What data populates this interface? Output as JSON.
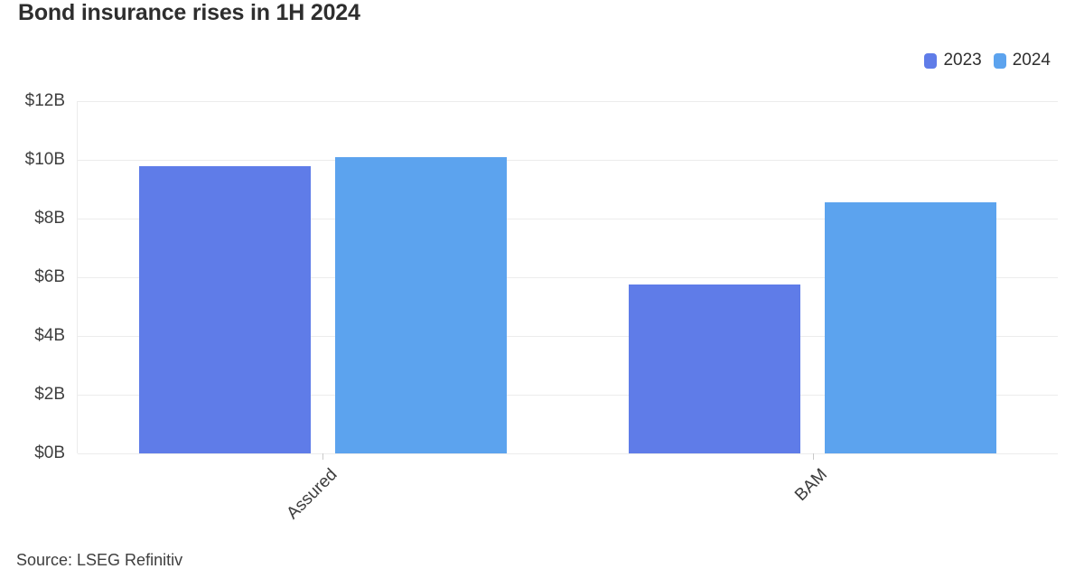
{
  "header": {
    "title": "Bond insurance rises in 1H 2024"
  },
  "footer": {
    "source": "Source: LSEG Refinitiv"
  },
  "chart_data": {
    "type": "bar",
    "title": "Bond insurance rises in 1H 2024",
    "categories": [
      "Assured",
      "BAM"
    ],
    "series": [
      {
        "name": "2023",
        "color": "#5f7ce8",
        "values": [
          9.8,
          5.75
        ]
      },
      {
        "name": "2024",
        "color": "#5ca3ee",
        "values": [
          10.1,
          8.55
        ]
      }
    ],
    "ylabel": "",
    "xlabel": "",
    "ylim": [
      0,
      12
    ],
    "yticks": [
      {
        "label": "$0B",
        "value": 0
      },
      {
        "label": "$2B",
        "value": 2
      },
      {
        "label": "$4B",
        "value": 4
      },
      {
        "label": "$6B",
        "value": 6
      },
      {
        "label": "$8B",
        "value": 8
      },
      {
        "label": "$10B",
        "value": 10
      },
      {
        "label": "$12B",
        "value": 12
      }
    ],
    "grid": true,
    "legend_position": "top-right",
    "source": "Source: LSEG Refinitiv"
  }
}
